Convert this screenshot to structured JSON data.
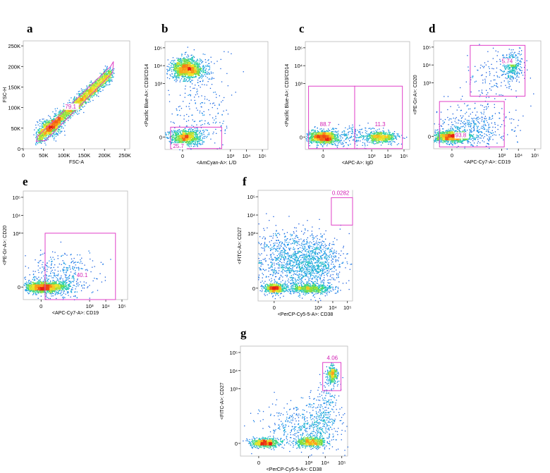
{
  "colors": {
    "gate": "#e040c8",
    "gate_label": "#d21fb4",
    "frame": "#b9b9b9"
  },
  "chart_data": [
    {
      "type": "scatter",
      "panel": "a",
      "title": "",
      "xlabel": "FSC-A",
      "ylabel": "FSC-H",
      "scale": "linear",
      "xlim": [
        0,
        262144
      ],
      "ylim": [
        0,
        262144
      ],
      "x_ticks": [
        {
          "v": 0,
          "label": "0"
        },
        {
          "v": 50000,
          "label": "50K"
        },
        {
          "v": 100000,
          "label": "100K"
        },
        {
          "v": 150000,
          "label": "150K"
        },
        {
          "v": 200000,
          "label": "200K"
        },
        {
          "v": 250000,
          "label": "250K"
        }
      ],
      "y_ticks": [
        {
          "v": 0,
          "label": "0"
        },
        {
          "v": 50000,
          "label": "50K"
        },
        {
          "v": 100000,
          "label": "100K"
        },
        {
          "v": 150000,
          "label": "150K"
        },
        {
          "v": 200000,
          "label": "200K"
        },
        {
          "v": 250000,
          "label": "250K"
        }
      ],
      "populations": [
        {
          "shape": "band",
          "from": [
            35000,
            25000
          ],
          "to": [
            215000,
            185000
          ],
          "spread": 0.09,
          "n": 2600
        },
        {
          "shape": "blob",
          "cx": 65000,
          "cy": 55000,
          "sx": 14000,
          "sy": 10000,
          "n": 320
        }
      ],
      "gates": [
        {
          "type": "polygon",
          "points": [
            [
              35000,
              30000
            ],
            [
              215000,
              200000
            ],
            [
              222000,
              212000
            ],
            [
              220000,
              185000
            ],
            [
              55000,
              20000
            ],
            [
              32000,
              18000
            ]
          ],
          "label": "79.1",
          "label_at": [
            103000,
            98000
          ]
        }
      ]
    },
    {
      "type": "scatter",
      "panel": "b",
      "title": "",
      "xlabel": "<AmCyan-A>: L/D",
      "ylabel": "<Pacific Blue-A>: CD3/CD14",
      "scale": "biexp",
      "xlim": [
        -1.1,
        5.35
      ],
      "ylim": [
        -0.7,
        5.35
      ],
      "x_ticks": [
        {
          "v": 0,
          "label": "0"
        },
        {
          "v": 3,
          "label": "10³"
        },
        {
          "v": 4,
          "label": "10⁴"
        },
        {
          "v": 5,
          "label": "10⁵"
        }
      ],
      "y_ticks": [
        {
          "v": 0,
          "label": "0"
        },
        {
          "v": 3,
          "label": "10³"
        },
        {
          "v": 4,
          "label": "10⁴"
        },
        {
          "v": 5,
          "label": "10⁵"
        }
      ],
      "populations": [
        {
          "shape": "blob",
          "cx": 0.2,
          "cy": 3.9,
          "sx": 0.45,
          "sy": 0.28,
          "n": 1000
        },
        {
          "shape": "blob",
          "cx": 0.5,
          "cy": 3.7,
          "sx": 0.55,
          "sy": 0.2,
          "n": 400
        },
        {
          "shape": "blob",
          "cx": 0.15,
          "cy": 0.0,
          "sx": 0.5,
          "sy": 0.22,
          "n": 900
        },
        {
          "shape": "cloud",
          "cx": 1.2,
          "cy": 2.0,
          "sx": 1.0,
          "sy": 1.6,
          "n": 260
        }
      ],
      "gates": [
        {
          "type": "rect",
          "x0": -0.75,
          "x1": 2.45,
          "y0": -0.65,
          "y1": 0.55,
          "label": "25.7",
          "label_at": [
            -0.6,
            -0.62
          ]
        }
      ]
    },
    {
      "type": "scatter",
      "panel": "c",
      "title": "",
      "xlabel": "<APC-A>: IgD",
      "ylabel": "<Pacific Blue-A>: CD3/CD14",
      "scale": "biexp",
      "xlim": [
        -1.1,
        5.35
      ],
      "ylim": [
        -0.7,
        5.35
      ],
      "x_ticks": [
        {
          "v": 0,
          "label": "0"
        },
        {
          "v": 3,
          "label": "10³"
        },
        {
          "v": 4,
          "label": "10⁴"
        },
        {
          "v": 5,
          "label": "10⁵"
        }
      ],
      "y_ticks": [
        {
          "v": 0,
          "label": "0"
        },
        {
          "v": 3,
          "label": "10³"
        },
        {
          "v": 4,
          "label": "10⁴"
        },
        {
          "v": 5,
          "label": "10⁵"
        }
      ],
      "populations": [
        {
          "shape": "blob",
          "cx": 0.0,
          "cy": 0.0,
          "sx": 0.45,
          "sy": 0.18,
          "n": 1100
        },
        {
          "shape": "blob",
          "cx": 3.6,
          "cy": 0.0,
          "sx": 0.5,
          "sy": 0.15,
          "n": 600
        },
        {
          "shape": "cloud",
          "cx": 2.0,
          "cy": 0.1,
          "sx": 1.0,
          "sy": 0.3,
          "n": 200
        }
      ],
      "gates": [
        {
          "type": "rect",
          "x0": -0.9,
          "x1": 1.95,
          "y0": -0.65,
          "y1": 2.85,
          "label": "88.7",
          "label_at": [
            -0.2,
            0.6
          ]
        },
        {
          "type": "rect",
          "x0": 1.95,
          "x1": 4.9,
          "y0": -0.65,
          "y1": 2.85,
          "label": "11.3",
          "label_at": [
            3.2,
            0.6
          ]
        }
      ]
    },
    {
      "type": "scatter",
      "panel": "d",
      "title": "",
      "xlabel": "<APC-Cy7-A>: CD19",
      "ylabel": "<PE-Gr-A>: CD20",
      "scale": "biexp",
      "xlim": [
        -1.1,
        5.35
      ],
      "ylim": [
        -0.7,
        5.35
      ],
      "x_ticks": [
        {
          "v": 0,
          "label": "0"
        },
        {
          "v": 3,
          "label": "10³"
        },
        {
          "v": 4,
          "label": "10⁴"
        },
        {
          "v": 5,
          "label": "10⁵"
        }
      ],
      "y_ticks": [
        {
          "v": 0,
          "label": "0"
        },
        {
          "v": 3,
          "label": "10³"
        },
        {
          "v": 4,
          "label": "10⁴"
        },
        {
          "v": 5,
          "label": "10⁵"
        }
      ],
      "populations": [
        {
          "shape": "blob",
          "cx": 0.0,
          "cy": 0.0,
          "sx": 0.55,
          "sy": 0.15,
          "n": 1300
        },
        {
          "shape": "blob",
          "cx": 3.6,
          "cy": 4.0,
          "sx": 0.3,
          "sy": 0.38,
          "n": 380
        },
        {
          "shape": "cloud",
          "cx": 1.2,
          "cy": 0.5,
          "sx": 1.1,
          "sy": 0.6,
          "n": 420
        },
        {
          "shape": "cloud",
          "cx": 2.5,
          "cy": 3.0,
          "sx": 0.9,
          "sy": 1.1,
          "n": 140
        }
      ],
      "gates": [
        {
          "type": "rect",
          "x0": 1.1,
          "x1": 4.4,
          "y0": 2.25,
          "y1": 5.1,
          "label": "5.74",
          "label_at": [
            3.0,
            4.1
          ]
        },
        {
          "type": "rect",
          "x0": -0.75,
          "x1": 3.15,
          "y0": -0.6,
          "y1": 1.95,
          "label": "93.8",
          "label_at": [
            0.2,
            -0.05
          ]
        }
      ]
    },
    {
      "type": "scatter",
      "panel": "e",
      "title": "",
      "xlabel": "<APC-Cy7-A>: CD19",
      "ylabel": "<PE-Gr-A>: CD20",
      "scale": "biexp",
      "xlim": [
        -1.1,
        5.35
      ],
      "ylim": [
        -0.7,
        5.35
      ],
      "x_ticks": [
        {
          "v": 0,
          "label": "0"
        },
        {
          "v": 3,
          "label": "10³"
        },
        {
          "v": 4,
          "label": "10⁴"
        },
        {
          "v": 5,
          "label": "10⁵"
        }
      ],
      "y_ticks": [
        {
          "v": 0,
          "label": "0"
        },
        {
          "v": 3,
          "label": "10³"
        },
        {
          "v": 4,
          "label": "10⁴"
        },
        {
          "v": 5,
          "label": "10⁵"
        }
      ],
      "populations": [
        {
          "shape": "blob",
          "cx": 0.0,
          "cy": 0.0,
          "sx": 0.6,
          "sy": 0.15,
          "n": 1100
        },
        {
          "shape": "cloud",
          "cx": 1.3,
          "cy": 0.6,
          "sx": 1.1,
          "sy": 0.7,
          "n": 450
        },
        {
          "shape": "blob",
          "cx": 0.8,
          "cy": 0.05,
          "sx": 0.5,
          "sy": 0.12,
          "n": 300
        }
      ],
      "gates": [
        {
          "type": "rect",
          "x0": 0.25,
          "x1": 4.6,
          "y0": -0.7,
          "y1": 3.0,
          "label": "40.1",
          "label_at": [
            2.2,
            0.55
          ]
        }
      ]
    },
    {
      "type": "scatter",
      "panel": "f",
      "title": "",
      "xlabel": "<PerCP-Cy5-5-A>: CD38",
      "ylabel": "<FITC-A>: CD27",
      "scale": "biexp",
      "xlim": [
        -1.1,
        5.35
      ],
      "ylim": [
        -0.7,
        5.35
      ],
      "x_ticks": [
        {
          "v": 0,
          "label": "0"
        },
        {
          "v": 3,
          "label": "10³"
        },
        {
          "v": 4,
          "label": "10⁴"
        },
        {
          "v": 5,
          "label": "10⁵"
        }
      ],
      "y_ticks": [
        {
          "v": 0,
          "label": "0"
        },
        {
          "v": 3,
          "label": "10³"
        },
        {
          "v": 4,
          "label": "10⁴"
        },
        {
          "v": 5,
          "label": "10⁵"
        }
      ],
      "populations": [
        {
          "shape": "blob",
          "cx": 0.0,
          "cy": 0.0,
          "sx": 0.35,
          "sy": 0.13,
          "n": 650
        },
        {
          "shape": "blob",
          "cx": 2.4,
          "cy": 0.0,
          "sx": 0.8,
          "sy": 0.13,
          "n": 650
        },
        {
          "shape": "cloud",
          "cx": 1.5,
          "cy": 1.5,
          "sx": 1.6,
          "sy": 0.8,
          "n": 1300
        },
        {
          "shape": "cloud",
          "cx": 2.8,
          "cy": 1.3,
          "sx": 0.6,
          "sy": 0.7,
          "n": 300
        }
      ],
      "gates": [
        {
          "type": "rect",
          "x0": 3.9,
          "x1": 5.35,
          "y0": 3.45,
          "y1": 4.95,
          "label": "0.0282",
          "label_at": [
            3.95,
            5.1
          ]
        }
      ]
    },
    {
      "type": "scatter",
      "panel": "g",
      "title": "",
      "xlabel": "<PerCP-Cy5-5-A>: CD38",
      "ylabel": "<FITC-A>: CD27",
      "scale": "biexp",
      "xlim": [
        -1.1,
        5.35
      ],
      "ylim": [
        -0.7,
        5.35
      ],
      "x_ticks": [
        {
          "v": 0,
          "label": "0"
        },
        {
          "v": 3,
          "label": "10³"
        },
        {
          "v": 4,
          "label": "10⁴"
        },
        {
          "v": 5,
          "label": "10⁵"
        }
      ],
      "y_ticks": [
        {
          "v": 0,
          "label": "0"
        },
        {
          "v": 3,
          "label": "10³"
        },
        {
          "v": 4,
          "label": "10⁴"
        },
        {
          "v": 5,
          "label": "10⁵"
        }
      ],
      "populations": [
        {
          "shape": "blob",
          "cx": 0.4,
          "cy": 0.05,
          "sx": 0.45,
          "sy": 0.12,
          "n": 700
        },
        {
          "shape": "blob",
          "cx": 3.1,
          "cy": 0.1,
          "sx": 0.45,
          "sy": 0.14,
          "n": 600
        },
        {
          "shape": "blob",
          "cx": 4.4,
          "cy": 3.8,
          "sx": 0.15,
          "sy": 0.25,
          "n": 320
        },
        {
          "shape": "cloud",
          "cx": 2.8,
          "cy": 1.0,
          "sx": 1.2,
          "sy": 0.7,
          "n": 500
        },
        {
          "shape": "band",
          "from": [
            3.6,
            0.6
          ],
          "to": [
            4.3,
            3.2
          ],
          "spread": 0.25,
          "n": 200
        }
      ],
      "gates": [
        {
          "type": "rect",
          "x0": 3.85,
          "x1": 4.95,
          "y0": 2.9,
          "y1": 4.45,
          "label": "4.06",
          "label_at": [
            4.1,
            4.6
          ]
        }
      ]
    }
  ]
}
